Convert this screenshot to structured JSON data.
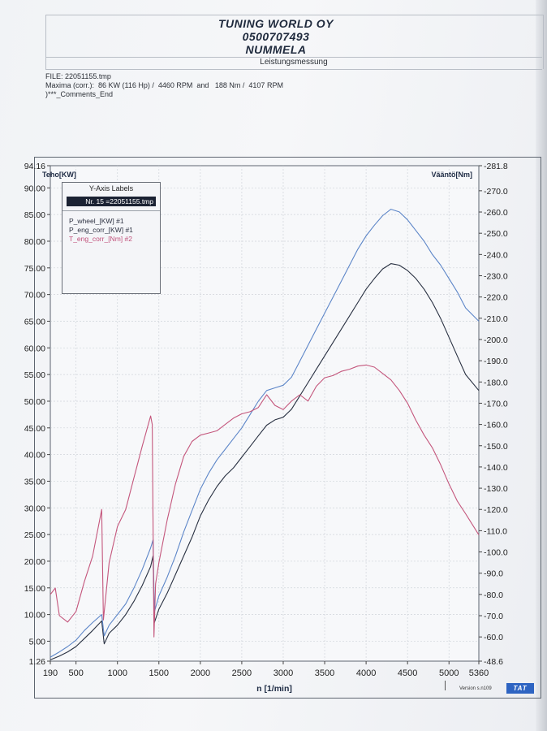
{
  "header": {
    "company": "TUNING WORLD OY",
    "phone": "0500707493",
    "city": "NUMMELA",
    "subtitle": "Leistungsmessung"
  },
  "info": {
    "file": "FILE: 22051155.tmp",
    "maxima": "Maxima (corr.):  86 KW (116 Hp) /  4460 RPM  and   188 Nm /  4107 RPM",
    "comments": ")***_Comments_End"
  },
  "legend": {
    "title": "Y-Axis Labels",
    "file": "Nr. 15 =22051155.tmp",
    "items": [
      {
        "label": "P_wheel_[KW] #1",
        "color": "#2b3040"
      },
      {
        "label": "P_eng_corr_[KW] #1",
        "color": "#2b3040"
      },
      {
        "label": "T_eng_corr_[Nm] #2",
        "color": "#c0507a"
      }
    ]
  },
  "footer": {
    "version": "Version s.n109",
    "brand": "TAT"
  },
  "colors": {
    "power_wheel": "#283041",
    "power_engine": "#5d86c8",
    "torque": "#c4567c",
    "grid": "#d0d4da"
  },
  "chart_data": {
    "type": "line",
    "xlabel": "n  [1/min]",
    "ylabel_left": "Teho[KW]",
    "ylabel_right": "Vääntö[Nm]",
    "xlim": [
      190,
      5360
    ],
    "ylim_left": [
      1.26,
      94.16
    ],
    "ylim_right": [
      48.6,
      281.8
    ],
    "x_ticks": [
      "190",
      "500",
      "1000",
      "1500",
      "2000",
      "2500",
      "3000",
      "3500",
      "4000",
      "4500",
      "5000",
      "5360"
    ],
    "y_left_ticks": [
      "1.26",
      "5.00",
      "10.00",
      "15.00",
      "20.00",
      "25.00",
      "30.00",
      "35.00",
      "40.00",
      "45.00",
      "50.00",
      "55.00",
      "60.00",
      "65.00",
      "70.00",
      "75.00",
      "80.00",
      "85.00",
      "90.00",
      "94.16"
    ],
    "y_right_ticks": [
      "-48.6",
      "-60.0",
      "-70.0",
      "-80.0",
      "-90.0",
      "-100.0",
      "-110.0",
      "-120.0",
      "-130.0",
      "-140.0",
      "-150.0",
      "-160.0",
      "-170.0",
      "-180.0",
      "-190.0",
      "-200.0",
      "-210.0",
      "-220.0",
      "-230.0",
      "-240.0",
      "-250.0",
      "-260.0",
      "-270.0",
      "-281.8"
    ],
    "grid": true,
    "legend_position": "top-left",
    "series": [
      {
        "name": "P_wheel_[KW] #1",
        "axis": "left",
        "x": [
          190,
          300,
          400,
          500,
          600,
          700,
          810,
          840,
          900,
          1000,
          1100,
          1200,
          1300,
          1400,
          1430,
          1445,
          1500,
          1600,
          1700,
          1800,
          1900,
          2000,
          2100,
          2200,
          2300,
          2400,
          2500,
          2600,
          2700,
          2800,
          2900,
          3000,
          3100,
          3200,
          3300,
          3400,
          3500,
          3600,
          3700,
          3800,
          3900,
          4000,
          4100,
          4200,
          4300,
          4400,
          4500,
          4600,
          4700,
          4800,
          4900,
          5000,
          5100,
          5200,
          5360
        ],
        "y": [
          1.5,
          2.2,
          3.0,
          4.0,
          5.5,
          7.0,
          8.8,
          4.5,
          6.5,
          8.0,
          10.0,
          12.5,
          15.5,
          19.0,
          21.0,
          8.5,
          11.0,
          14.0,
          17.5,
          21.0,
          24.5,
          28.5,
          31.5,
          34.0,
          36.0,
          37.5,
          39.5,
          41.5,
          43.5,
          45.5,
          46.5,
          47.0,
          48.5,
          51.0,
          53.5,
          56.0,
          58.5,
          61.0,
          63.5,
          66.0,
          68.5,
          71.0,
          73.0,
          74.8,
          75.8,
          75.5,
          74.5,
          73.0,
          71.0,
          68.5,
          65.5,
          62.0,
          58.5,
          55.0,
          52.0
        ]
      },
      {
        "name": "P_eng_corr_[KW] #1",
        "axis": "left",
        "x": [
          190,
          300,
          400,
          500,
          600,
          700,
          810,
          840,
          900,
          1000,
          1100,
          1200,
          1300,
          1400,
          1430,
          1445,
          1500,
          1600,
          1700,
          1800,
          1900,
          2000,
          2100,
          2200,
          2300,
          2400,
          2500,
          2600,
          2700,
          2800,
          2900,
          3000,
          3100,
          3200,
          3300,
          3400,
          3500,
          3600,
          3700,
          3800,
          3900,
          4000,
          4100,
          4200,
          4300,
          4400,
          4500,
          4600,
          4700,
          4800,
          4900,
          5000,
          5100,
          5200,
          5360
        ],
        "y": [
          2.0,
          3.0,
          4.0,
          5.2,
          7.0,
          8.5,
          10.0,
          6.0,
          8.0,
          10.0,
          12.0,
          15.0,
          18.5,
          22.5,
          24.0,
          10.5,
          13.5,
          17.0,
          21.0,
          25.5,
          29.5,
          33.5,
          36.5,
          39.0,
          41.0,
          43.0,
          45.0,
          47.5,
          50.0,
          52.0,
          52.5,
          53.0,
          54.5,
          57.5,
          60.5,
          63.5,
          66.5,
          69.5,
          72.5,
          75.5,
          78.5,
          81.0,
          83.0,
          84.8,
          86.0,
          85.5,
          84.0,
          82.0,
          80.0,
          77.5,
          75.5,
          73.0,
          70.5,
          67.5,
          65.0
        ]
      },
      {
        "name": "T_eng_corr_[Nm] #2",
        "axis": "right",
        "x": [
          190,
          250,
          300,
          400,
          500,
          600,
          700,
          800,
          810,
          830,
          900,
          1000,
          1100,
          1200,
          1300,
          1400,
          1420,
          1440,
          1460,
          1500,
          1600,
          1700,
          1800,
          1900,
          2000,
          2100,
          2200,
          2300,
          2400,
          2500,
          2600,
          2700,
          2800,
          2900,
          3000,
          3100,
          3200,
          3300,
          3400,
          3500,
          3600,
          3700,
          3800,
          3900,
          4000,
          4100,
          4200,
          4300,
          4400,
          4500,
          4600,
          4700,
          4800,
          4900,
          5000,
          5100,
          5200,
          5360
        ],
        "y": [
          80.0,
          83.0,
          70.0,
          67.0,
          72.0,
          86.0,
          98.0,
          118.0,
          120.0,
          68.0,
          95.0,
          112.0,
          120.0,
          135.0,
          150.0,
          164.0,
          160.0,
          60.0,
          85.0,
          95.0,
          115.0,
          132.0,
          145.0,
          152.0,
          155.0,
          156.0,
          157.0,
          160.0,
          163.0,
          165.0,
          166.0,
          168.0,
          174.0,
          169.0,
          167.0,
          171.0,
          174.0,
          171.0,
          178.0,
          182.0,
          183.0,
          185.0,
          186.0,
          187.5,
          188.0,
          187.0,
          184.0,
          181.0,
          176.0,
          170.0,
          162.0,
          155.0,
          149.0,
          141.0,
          132.0,
          124.0,
          118.0,
          108.0
        ]
      }
    ]
  }
}
